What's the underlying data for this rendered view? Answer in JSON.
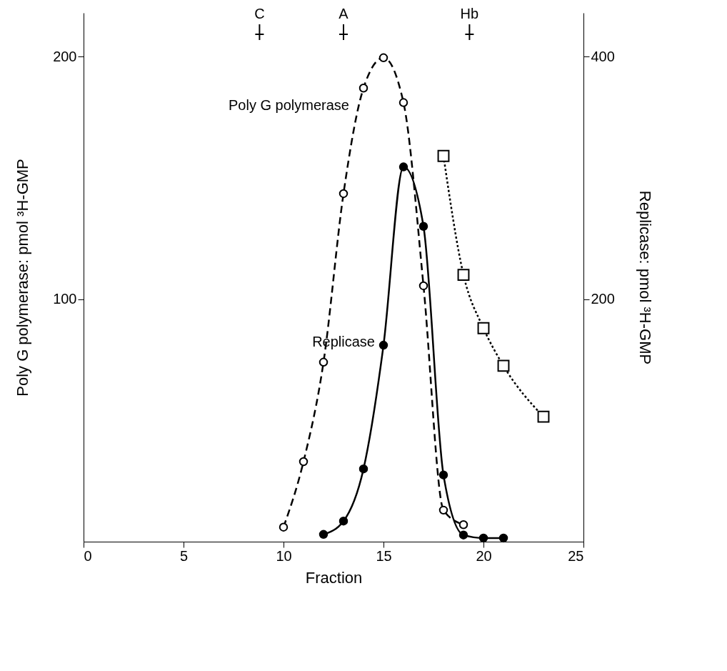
{
  "chart_data": {
    "type": "line",
    "xlabel": "Fraction",
    "ylabel": "Poly G polymerase: pmol ³H-GMP",
    "y2label": "Replicase: pmol ³H-GMP",
    "xlim": [
      0,
      25
    ],
    "xticks": [
      0,
      5,
      10,
      15,
      20,
      25
    ],
    "ylim": [
      0,
      218
    ],
    "yticks": [
      100,
      200
    ],
    "y2lim": [
      0,
      436
    ],
    "y2ticks": [
      200,
      400
    ],
    "grid": false,
    "series": [
      {
        "name": "Poly G polymerase",
        "color": "#000000",
        "marker": "circle",
        "line_style": "dashed",
        "x": [
          10,
          11,
          12,
          13,
          14,
          15,
          16,
          17,
          18,
          19
        ],
        "values": [
          6,
          33,
          74,
          143.5,
          187,
          199.5,
          181,
          105.5,
          13,
          7
        ]
      },
      {
        "name": "Replicase",
        "color": "#000000",
        "marker": "circle",
        "line_style": "solid",
        "axis": "y2",
        "x": [
          12,
          13,
          14,
          15,
          16,
          17,
          18,
          19,
          20,
          21
        ],
        "values": [
          6,
          17,
          60,
          162,
          309,
          260,
          55,
          5.5,
          3,
          3
        ]
      },
      {
        "color": "#000000",
        "marker": "square",
        "line_style": "dotted",
        "axis": "y2",
        "x": [
          18,
          19,
          20,
          21,
          23
        ],
        "values": [
          318,
          220,
          176,
          145,
          103
        ]
      }
    ],
    "ref_lines": [
      {
        "axis": "x",
        "value": 8.8,
        "label": "C"
      },
      {
        "axis": "x",
        "value": 13,
        "label": "A"
      },
      {
        "axis": "x",
        "value": 19.3,
        "label": "Hb"
      }
    ]
  }
}
